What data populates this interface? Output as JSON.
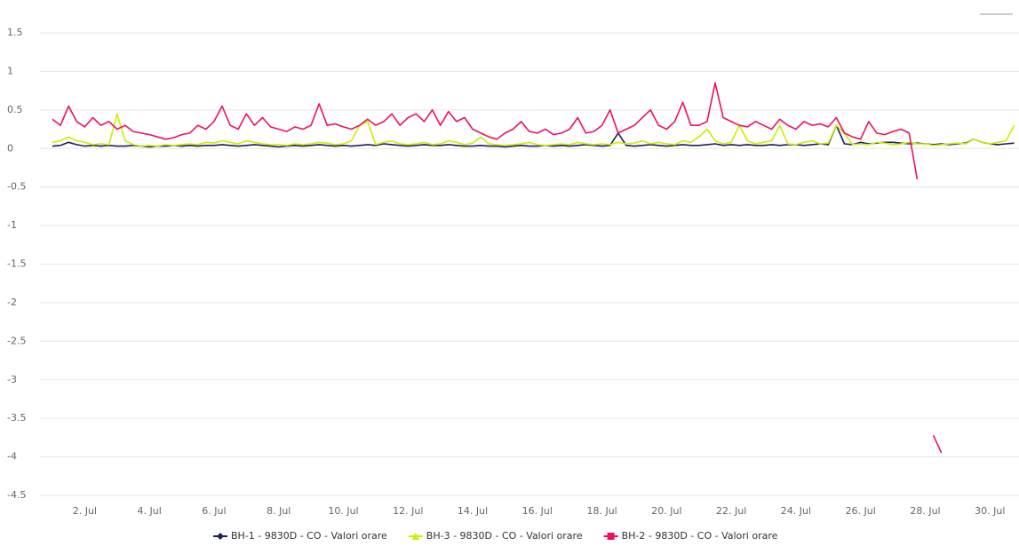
{
  "chart_data": {
    "type": "line",
    "x": [
      1,
      1.25,
      1.5,
      1.75,
      2,
      2.25,
      2.5,
      2.75,
      3,
      3.25,
      3.5,
      3.75,
      4,
      4.25,
      4.5,
      4.75,
      5,
      5.25,
      5.5,
      5.75,
      6,
      6.25,
      6.5,
      6.75,
      7,
      7.25,
      7.5,
      7.75,
      8,
      8.25,
      8.5,
      8.75,
      9,
      9.25,
      9.5,
      9.75,
      10,
      10.25,
      10.5,
      10.75,
      11,
      11.25,
      11.5,
      11.75,
      12,
      12.25,
      12.5,
      12.75,
      13,
      13.25,
      13.5,
      13.75,
      14,
      14.25,
      14.5,
      14.75,
      15,
      15.25,
      15.5,
      15.75,
      16,
      16.25,
      16.5,
      16.75,
      17,
      17.25,
      17.5,
      17.75,
      18,
      18.25,
      18.5,
      18.75,
      19,
      19.25,
      19.5,
      19.75,
      20,
      20.25,
      20.5,
      20.75,
      21,
      21.25,
      21.5,
      21.75,
      22,
      22.25,
      22.5,
      22.75,
      23,
      23.25,
      23.5,
      23.75,
      24,
      24.25,
      24.5,
      24.75,
      25,
      25.25,
      25.5,
      25.75,
      26,
      26.25,
      26.5,
      26.75,
      27,
      27.25,
      27.5,
      27.75,
      28,
      28.25,
      28.5,
      28.75,
      29,
      29.25,
      29.5,
      29.75,
      30,
      30.25,
      30.5,
      30.75
    ],
    "series": [
      {
        "name": "BH-1 - 9830D - CO - Valori orare",
        "color": "#1c1f5c",
        "values": [
          0.03,
          0.04,
          0.08,
          0.05,
          0.03,
          0.04,
          0.03,
          0.04,
          0.03,
          0.03,
          0.04,
          0.03,
          0.02,
          0.03,
          0.03,
          0.04,
          0.03,
          0.04,
          0.03,
          0.04,
          0.04,
          0.05,
          0.04,
          0.03,
          0.04,
          0.05,
          0.04,
          0.03,
          0.02,
          0.03,
          0.04,
          0.03,
          0.04,
          0.05,
          0.04,
          0.03,
          0.04,
          0.03,
          0.04,
          0.05,
          0.04,
          0.06,
          0.05,
          0.04,
          0.03,
          0.04,
          0.05,
          0.04,
          0.04,
          0.05,
          0.04,
          0.03,
          0.03,
          0.04,
          0.03,
          0.03,
          0.02,
          0.03,
          0.04,
          0.03,
          0.03,
          0.04,
          0.03,
          0.04,
          0.03,
          0.04,
          0.05,
          0.04,
          0.03,
          0.04,
          0.2,
          0.04,
          0.03,
          0.04,
          0.05,
          0.04,
          0.03,
          0.04,
          0.05,
          0.04,
          0.04,
          0.05,
          0.06,
          0.04,
          0.05,
          0.04,
          0.05,
          0.04,
          0.04,
          0.05,
          0.04,
          0.05,
          0.05,
          0.04,
          0.05,
          0.06,
          0.05,
          0.3,
          0.06,
          0.05,
          0.08,
          0.06,
          0.07,
          0.08,
          0.08,
          0.07,
          0.06,
          0.07,
          0.06,
          0.05,
          0.06,
          0.05,
          0.06,
          0.07,
          0.12,
          0.08,
          0.06,
          0.05,
          0.06,
          0.07
        ]
      },
      {
        "name": "BH-3 - 9830D - CO - Valori orare",
        "color": "#ccee00",
        "values": [
          0.08,
          0.1,
          0.15,
          0.1,
          0.08,
          0.05,
          0.06,
          0.05,
          0.45,
          0.1,
          0.05,
          0.03,
          0.04,
          0.03,
          0.05,
          0.04,
          0.05,
          0.06,
          0.05,
          0.08,
          0.07,
          0.1,
          0.08,
          0.06,
          0.1,
          0.08,
          0.06,
          0.05,
          0.05,
          0.04,
          0.06,
          0.05,
          0.06,
          0.08,
          0.07,
          0.05,
          0.06,
          0.1,
          0.3,
          0.35,
          0.05,
          0.08,
          0.1,
          0.06,
          0.05,
          0.06,
          0.08,
          0.05,
          0.06,
          0.1,
          0.08,
          0.05,
          0.07,
          0.15,
          0.06,
          0.05,
          0.04,
          0.05,
          0.06,
          0.08,
          0.05,
          0.04,
          0.05,
          0.06,
          0.05,
          0.08,
          0.06,
          0.05,
          0.06,
          0.05,
          0.08,
          0.06,
          0.07,
          0.1,
          0.06,
          0.08,
          0.06,
          0.05,
          0.1,
          0.08,
          0.15,
          0.25,
          0.1,
          0.06,
          0.08,
          0.3,
          0.1,
          0.06,
          0.08,
          0.1,
          0.3,
          0.06,
          0.05,
          0.08,
          0.1,
          0.06,
          0.07,
          0.3,
          0.2,
          0.05,
          0.06,
          0.05,
          0.08,
          0.07,
          0.05,
          0.06,
          0.08,
          0.06,
          0.06,
          0.04,
          0.05,
          0.06,
          0.07,
          0.06,
          0.12,
          0.08,
          0.06,
          0.08,
          0.1,
          0.3
        ]
      },
      {
        "name": "BH-2 - 9830D - CO - Valori orare",
        "color": "#f0105a",
        "values": [
          0.38,
          0.3,
          0.55,
          0.35,
          0.28,
          0.4,
          0.3,
          0.35,
          0.25,
          0.3,
          0.22,
          0.2,
          0.18,
          0.15,
          0.12,
          0.14,
          0.18,
          0.2,
          0.3,
          0.25,
          0.35,
          0.55,
          0.3,
          0.25,
          0.45,
          0.3,
          0.4,
          0.28,
          0.25,
          0.22,
          0.28,
          0.25,
          0.3,
          0.58,
          0.3,
          0.32,
          0.28,
          0.25,
          0.3,
          0.38,
          0.3,
          0.35,
          0.45,
          0.3,
          0.4,
          0.45,
          0.35,
          0.5,
          0.3,
          0.48,
          0.35,
          0.4,
          0.25,
          0.2,
          0.15,
          0.12,
          0.2,
          0.25,
          0.35,
          0.22,
          0.2,
          0.25,
          0.18,
          0.2,
          0.25,
          0.4,
          0.2,
          0.22,
          0.3,
          0.5,
          0.2,
          0.25,
          0.3,
          0.4,
          0.5,
          0.3,
          0.25,
          0.35,
          0.6,
          0.3,
          0.3,
          0.35,
          0.85,
          0.4,
          0.35,
          0.3,
          0.28,
          0.35,
          0.3,
          0.25,
          0.38,
          0.3,
          0.25,
          0.35,
          0.3,
          0.32,
          0.28,
          0.4,
          0.2,
          0.15,
          0.12,
          0.35,
          0.2,
          0.18,
          0.22,
          0.25,
          0.2,
          -0.4,
          null,
          -3.72,
          -3.95,
          null,
          null,
          null,
          null,
          null,
          null,
          null,
          null,
          null
        ]
      }
    ],
    "xlim": [
      1,
      30.9
    ],
    "xticks": [
      {
        "value": 2,
        "label": "2. Jul"
      },
      {
        "value": 4,
        "label": "4. Jul"
      },
      {
        "value": 6,
        "label": "6. Jul"
      },
      {
        "value": 8,
        "label": "8. Jul"
      },
      {
        "value": 10,
        "label": "10. Jul"
      },
      {
        "value": 12,
        "label": "12. Jul"
      },
      {
        "value": 14,
        "label": "14. Jul"
      },
      {
        "value": 16,
        "label": "16. Jul"
      },
      {
        "value": 18,
        "label": "18. Jul"
      },
      {
        "value": 20,
        "label": "20. Jul"
      },
      {
        "value": 22,
        "label": "22. Jul"
      },
      {
        "value": 24,
        "label": "24. Jul"
      },
      {
        "value": 26,
        "label": "26. Jul"
      },
      {
        "value": 28,
        "label": "28. Jul"
      },
      {
        "value": 30,
        "label": "30. Jul"
      }
    ],
    "ylim": [
      -4.5,
      1.5
    ],
    "yticks": [
      1.5,
      1,
      0.5,
      0,
      -0.5,
      -1,
      -1.5,
      -2,
      -2.5,
      -3,
      -3.5,
      -4,
      -4.5
    ],
    "grid": true,
    "legend": "bottom"
  }
}
